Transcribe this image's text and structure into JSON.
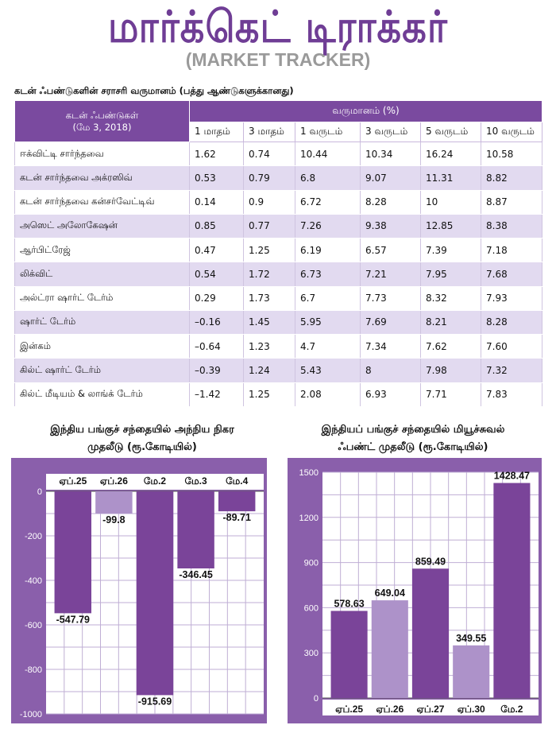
{
  "header": {
    "title": "மார்க்கெட் டிராக்கர்",
    "subtitle": "(MARKET TRACKER)"
  },
  "table": {
    "caption": "கடன் ஃபண்டுகளின் சராசரி வருமானம் (பத்து ஆண்டுகளுக்கானது)",
    "fund_header": "கடன் ஃபண்டுகள்",
    "date_header": "(மே 3, 2018)",
    "returns_header": "வருமானம் (%)",
    "periods": [
      "1 மாதம்",
      "3 மாதம்",
      "1 வருடம்",
      "3 வருடம்",
      "5 வருடம்",
      "10 வருடம்"
    ],
    "rows": [
      {
        "name": "ஈக்விட்டி சார்ந்தவை",
        "values": [
          "1.62",
          "0.74",
          "10.44",
          "10.34",
          "16.24",
          "10.58"
        ]
      },
      {
        "name": "கடன் சார்ந்தவை அக்ரஸிவ்",
        "values": [
          "0.53",
          "0.79",
          "6.8",
          "9.07",
          "11.31",
          "8.82"
        ]
      },
      {
        "name": "கடன் சார்ந்தவை கன்சர்வேட்டிவ்",
        "values": [
          "0.14",
          "0.9",
          "6.72",
          "8.28",
          "10",
          "8.87"
        ]
      },
      {
        "name": "அஸெட் அலோகேஷன்",
        "values": [
          "0.85",
          "0.77",
          "7.26",
          "9.38",
          "12.85",
          "8.38"
        ]
      },
      {
        "name": "ஆர்பிட்ரேஜ்",
        "values": [
          "0.47",
          "1.25",
          "6.19",
          "6.57",
          "7.39",
          "7.18"
        ]
      },
      {
        "name": "லிக்விட்",
        "values": [
          "0.54",
          "1.72",
          "6.73",
          "7.21",
          "7.95",
          "7.68"
        ]
      },
      {
        "name": "அல்ட்ரா ஷார்ட் டேர்ம்",
        "values": [
          "0.29",
          "1.73",
          "6.7",
          "7.73",
          "8.32",
          "7.93"
        ]
      },
      {
        "name": "ஷார்ட் டேர்ம்",
        "values": [
          "–0.16",
          "1.45",
          "5.95",
          "7.69",
          "8.21",
          "8.28"
        ]
      },
      {
        "name": "இன்கம்",
        "values": [
          "–0.64",
          "1.23",
          "4.7",
          "7.34",
          "7.62",
          "7.60"
        ]
      },
      {
        "name": "கில்ட் ஷார்ட் டேர்ம்",
        "values": [
          "–0.39",
          "1.24",
          "5.43",
          "8",
          "7.98",
          "7.32"
        ]
      },
      {
        "name": "கில்ட் மீடியம் & லாங்க் டேர்ம்",
        "values": [
          "–1.42",
          "1.25",
          "2.08",
          "6.93",
          "7.71",
          "7.83"
        ]
      }
    ]
  },
  "colors": {
    "title_purple": "#6f3d95",
    "header_purple": "#7a4a9f",
    "bar_dark": "#7a4499",
    "bar_light": "#ad92c9",
    "panel_purple": "#8a5fab",
    "row_alt": "#e2daf0"
  },
  "chart_data": [
    {
      "type": "bar",
      "title": "இந்திய பங்குச் சந்தையில் அந்நிய நிகர முதலீடு (ரூ.கோடியில்)",
      "title_lines": [
        "இந்திய பங்குச் சந்தையில் அந்நிய நிகர",
        "முதலீடு (ரூ.கோடியில்)"
      ],
      "categories": [
        "ஏப்.25",
        "ஏப்.26",
        "மே.2",
        "மே.3",
        "மே.4"
      ],
      "values": [
        -547.79,
        -99.8,
        -915.69,
        -346.45,
        -89.71
      ],
      "value_labels": [
        "-547.79",
        "-99.8",
        "-915.69",
        "-346.45",
        "-89.71"
      ],
      "bar_shades": [
        "dark",
        "light",
        "dark",
        "dark",
        "dark"
      ],
      "ylim": [
        -1000,
        0
      ],
      "yticks": [
        0,
        -200,
        -400,
        -600,
        -800,
        -1000
      ],
      "grid": true,
      "category_axis": "top"
    },
    {
      "type": "bar",
      "title": "இந்தியப் பங்குச் சந்தையில் மியூச்சுவல் ஃபண்ட் முதலீடு (ரூ.கோடியில்)",
      "title_lines": [
        "இந்தியப் பங்குச் சந்தையில் மியூச்சுவல்",
        "ஃபண்ட் முதலீடு (ரூ.கோடியில்)"
      ],
      "categories": [
        "ஏப்.25",
        "ஏப்.26",
        "ஏப்.27",
        "ஏப்.30",
        "மே.2"
      ],
      "values": [
        578.63,
        649.04,
        859.49,
        349.55,
        1428.47
      ],
      "value_labels": [
        "578.63",
        "649.04",
        "859.49",
        "349.55",
        "1428.47"
      ],
      "bar_shades": [
        "dark",
        "light",
        "dark",
        "light",
        "dark"
      ],
      "ylim": [
        0,
        1500
      ],
      "yticks": [
        0,
        300,
        600,
        900,
        1200,
        1500
      ],
      "grid": true,
      "category_axis": "bottom"
    }
  ]
}
